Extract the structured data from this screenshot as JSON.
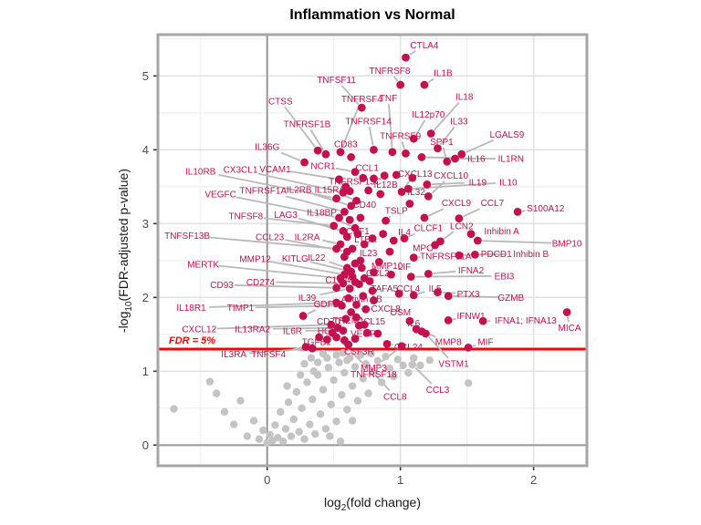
{
  "title": "Inflammation vs Normal",
  "x_label": {
    "pre": "log",
    "sub": "2",
    "post": "(fold change)"
  },
  "y_label": {
    "pre": "-log",
    "sub": "10",
    "post": "(FDR-adjusted p-value)"
  },
  "chart_data": {
    "type": "scatter",
    "title": "Inflammation vs Normal",
    "xlabel": "log2(fold change)",
    "ylabel": "-log10(FDR-adjusted p-value)",
    "xlim": [
      -0.82,
      2.4
    ],
    "ylim": [
      -0.28,
      5.56
    ],
    "x_ticks": [
      0,
      1,
      2
    ],
    "y_ticks": [
      0,
      1,
      2,
      3,
      4,
      5
    ],
    "grid": "major+minor",
    "threshold": {
      "y": 1.301,
      "label": "FDR = 5%",
      "color": "#fe0000"
    },
    "colors": {
      "significant": "#c5104f",
      "label_text": "#c5104f",
      "nonsignificant": "#c4c4c4",
      "leader": "#b9b9b9",
      "grid_major": "#e2e2e2",
      "grid_minor": "#f0f0f0",
      "zero_line": "#969696",
      "panel_border": "#a6a6a6",
      "tick_text": "#4d4d4d"
    },
    "labeled_points": [
      {
        "n": "CTLA4",
        "x": 1.04,
        "y": 5.25,
        "lx": 1.18,
        "ly": 5.42
      },
      {
        "n": "TNFRSF8",
        "x": 1.0,
        "y": 4.88,
        "lx": 0.92,
        "ly": 5.07
      },
      {
        "n": "IL1B",
        "x": 1.18,
        "y": 4.88,
        "lx": 1.32,
        "ly": 5.04
      },
      {
        "n": "TNFSF11",
        "x": 0.71,
        "y": 4.57,
        "lx": 0.52,
        "ly": 4.95
      },
      {
        "n": "TNF",
        "x": 0.94,
        "y": 3.97,
        "lx": 0.91,
        "ly": 4.7
      },
      {
        "n": "IL18",
        "x": 1.23,
        "y": 4.22,
        "lx": 1.48,
        "ly": 4.72
      },
      {
        "n": "IL12p70",
        "x": 1.1,
        "y": 4.15,
        "lx": 1.21,
        "ly": 4.48
      },
      {
        "n": "IL33",
        "x": 1.28,
        "y": 4.02,
        "lx": 1.44,
        "ly": 4.39
      },
      {
        "n": "LGALS9",
        "x": 1.46,
        "y": 3.94,
        "lx": 1.8,
        "ly": 4.21
      },
      {
        "n": "CTSS",
        "x": 0.38,
        "y": 3.99,
        "lx": 0.1,
        "ly": 4.66
      },
      {
        "n": "TNFRSF4",
        "x": 0.55,
        "y": 3.97,
        "lx": 0.71,
        "ly": 4.69
      },
      {
        "n": "TNFRSF1B",
        "x": 0.44,
        "y": 3.94,
        "lx": 0.3,
        "ly": 4.35
      },
      {
        "n": "TNFRSF14",
        "x": 0.8,
        "y": 4.0,
        "lx": 0.76,
        "ly": 4.39
      },
      {
        "n": "CD83",
        "x": 0.63,
        "y": 3.9,
        "lx": 0.59,
        "ly": 4.08
      },
      {
        "n": "TNFRSF9",
        "x": 1.04,
        "y": 3.95,
        "lx": 1.0,
        "ly": 4.19
      },
      {
        "n": "SPP1",
        "x": 1.35,
        "y": 3.84,
        "lx": 1.31,
        "ly": 4.11
      },
      {
        "n": "IL36G",
        "x": 0.28,
        "y": 3.83,
        "lx": 0.0,
        "ly": 4.04
      },
      {
        "n": "IL16",
        "x": 1.16,
        "y": 3.9,
        "lx": 1.57,
        "ly": 3.88
      },
      {
        "n": "IL1RN",
        "x": 1.41,
        "y": 3.88,
        "lx": 1.83,
        "ly": 3.88
      },
      {
        "n": "NCR1",
        "x": 0.66,
        "y": 3.7,
        "lx": 0.42,
        "ly": 3.78
      },
      {
        "n": "VCAM1",
        "x": 0.54,
        "y": 3.6,
        "lx": 0.06,
        "ly": 3.74
      },
      {
        "n": "CCL1",
        "x": 0.8,
        "y": 3.61,
        "lx": 0.75,
        "ly": 3.76
      },
      {
        "n": "TNFRSF13C",
        "x": 0.62,
        "y": 3.44,
        "lx": 0.66,
        "ly": 3.57
      },
      {
        "n": "IL12B",
        "x": 0.85,
        "y": 3.4,
        "lx": 0.89,
        "ly": 3.53
      },
      {
        "n": "CXCL13",
        "x": 1.01,
        "y": 3.43,
        "lx": 1.11,
        "ly": 3.68
      },
      {
        "n": "CXCL10",
        "x": 1.21,
        "y": 3.37,
        "lx": 1.38,
        "ly": 3.65
      },
      {
        "n": "IL19",
        "x": 1.2,
        "y": 3.53,
        "lx": 1.58,
        "ly": 3.56
      },
      {
        "n": "IL10",
        "x": 1.06,
        "y": 3.47,
        "lx": 1.81,
        "ly": 3.56
      },
      {
        "n": "IL32",
        "x": 1.07,
        "y": 3.27,
        "lx": 1.12,
        "ly": 3.43
      },
      {
        "n": "IL10RB",
        "x": 0.52,
        "y": 3.34,
        "lx": -0.5,
        "ly": 3.71
      },
      {
        "n": "CX3CL1",
        "x": 0.57,
        "y": 3.42,
        "lx": -0.2,
        "ly": 3.73
      },
      {
        "n": "VEGFC",
        "x": 0.54,
        "y": 3.08,
        "lx": -0.35,
        "ly": 3.4
      },
      {
        "n": "TNFRSF1A",
        "x": 0.58,
        "y": 3.16,
        "lx": -0.03,
        "ly": 3.45
      },
      {
        "n": "IL2RB",
        "x": 0.63,
        "y": 3.24,
        "lx": 0.24,
        "ly": 3.46
      },
      {
        "n": "IL15RA",
        "x": 0.67,
        "y": 3.31,
        "lx": 0.47,
        "ly": 3.46
      },
      {
        "n": "CD40",
        "x": 0.7,
        "y": 3.08,
        "lx": 0.73,
        "ly": 3.26
      },
      {
        "n": "TSLP",
        "x": 0.89,
        "y": 3.04,
        "lx": 0.97,
        "ly": 3.18
      },
      {
        "n": "CXCL9",
        "x": 1.18,
        "y": 3.08,
        "lx": 1.42,
        "ly": 3.28
      },
      {
        "n": "CCL7",
        "x": 1.44,
        "y": 3.07,
        "lx": 1.69,
        "ly": 3.28
      },
      {
        "n": "S100A12",
        "x": 1.88,
        "y": 3.16,
        "lx": 2.09,
        "ly": 3.21
      },
      {
        "n": "TNFSF8",
        "x": 0.5,
        "y": 2.97,
        "lx": -0.16,
        "ly": 3.1
      },
      {
        "n": "LAG3",
        "x": 0.57,
        "y": 2.9,
        "lx": 0.14,
        "ly": 3.12
      },
      {
        "n": "IL18BP",
        "x": 0.66,
        "y": 2.94,
        "lx": 0.41,
        "ly": 3.15
      },
      {
        "n": "CSF1",
        "x": 0.6,
        "y": 2.82,
        "lx": 0.68,
        "ly": 2.9
      },
      {
        "n": "LTBR",
        "x": 0.64,
        "y": 2.66,
        "lx": 0.74,
        "ly": 2.79
      },
      {
        "n": "IL4",
        "x": 0.95,
        "y": 2.77,
        "lx": 1.03,
        "ly": 2.89
      },
      {
        "n": "CLCF1",
        "x": 1.03,
        "y": 2.8,
        "lx": 1.21,
        "ly": 2.94
      },
      {
        "n": "LCN2",
        "x": 1.3,
        "y": 2.76,
        "lx": 1.46,
        "ly": 2.97
      },
      {
        "n": "Inhibin A",
        "x": 1.53,
        "y": 2.86,
        "lx": 1.76,
        "ly": 2.9
      },
      {
        "n": "MPO",
        "x": 1.26,
        "y": 2.71,
        "lx": 1.17,
        "ly": 2.67
      },
      {
        "n": "BMP10",
        "x": 1.58,
        "y": 2.77,
        "lx": 2.25,
        "ly": 2.73
      },
      {
        "n": "PDCD1",
        "x": 1.44,
        "y": 2.57,
        "lx": 1.72,
        "ly": 2.59
      },
      {
        "n": "Inhibin B",
        "x": 1.56,
        "y": 2.58,
        "lx": 1.98,
        "ly": 2.59
      },
      {
        "n": "TNFRSF11A",
        "x": 1.1,
        "y": 2.54,
        "lx": 1.34,
        "ly": 2.56
      },
      {
        "n": "TNFSF13B",
        "x": 0.52,
        "y": 2.66,
        "lx": -0.6,
        "ly": 2.84
      },
      {
        "n": "CCL23",
        "x": 0.6,
        "y": 2.62,
        "lx": 0.02,
        "ly": 2.82
      },
      {
        "n": "IL2RA",
        "x": 0.55,
        "y": 2.72,
        "lx": 0.3,
        "ly": 2.82
      },
      {
        "n": "IL23",
        "x": 0.7,
        "y": 2.5,
        "lx": 0.76,
        "ly": 2.6
      },
      {
        "n": "IL39",
        "x": 0.62,
        "y": 2.12,
        "lx": 0.3,
        "ly": 2.0
      },
      {
        "n": "IL22",
        "x": 0.6,
        "y": 2.4,
        "lx": 0.37,
        "ly": 2.54
      },
      {
        "n": "MERTK",
        "x": 0.55,
        "y": 2.26,
        "lx": -0.48,
        "ly": 2.45
      },
      {
        "n": "MMP12",
        "x": 0.58,
        "y": 2.31,
        "lx": -0.09,
        "ly": 2.52
      },
      {
        "n": "KITLG",
        "x": 0.63,
        "y": 2.35,
        "lx": 0.21,
        "ly": 2.53
      },
      {
        "n": "CD93",
        "x": 0.52,
        "y": 2.13,
        "lx": -0.34,
        "ly": 2.17
      },
      {
        "n": "CD274",
        "x": 0.57,
        "y": 2.19,
        "lx": -0.05,
        "ly": 2.21
      },
      {
        "n": "C1QA",
        "x": 0.66,
        "y": 2.21,
        "lx": 0.53,
        "ly": 2.24
      },
      {
        "n": "MMP10",
        "x": 0.8,
        "y": 2.34,
        "lx": 0.9,
        "ly": 2.43
      },
      {
        "n": "LIF",
        "x": 0.93,
        "y": 2.31,
        "lx": 1.03,
        "ly": 2.42
      },
      {
        "n": "CCL2",
        "x": 0.73,
        "y": 2.26,
        "lx": 0.83,
        "ly": 2.33
      },
      {
        "n": "TAFA5",
        "x": 0.79,
        "y": 2.09,
        "lx": 0.88,
        "ly": 2.12
      },
      {
        "n": "CCL4",
        "x": 0.99,
        "y": 2.05,
        "lx": 1.06,
        "ly": 2.12
      },
      {
        "n": "IFNA2",
        "x": 1.21,
        "y": 2.32,
        "lx": 1.53,
        "ly": 2.37
      },
      {
        "n": "EBI3",
        "x": 1.08,
        "y": 2.28,
        "lx": 1.78,
        "ly": 2.29
      },
      {
        "n": "IL5",
        "x": 1.1,
        "y": 2.03,
        "lx": 1.26,
        "ly": 2.12
      },
      {
        "n": "PTX3",
        "x": 1.28,
        "y": 2.07,
        "lx": 1.51,
        "ly": 2.05
      },
      {
        "n": "GZMB",
        "x": 1.36,
        "y": 2.02,
        "lx": 1.83,
        "ly": 2.0
      },
      {
        "n": "Activin AB",
        "x": 0.8,
        "y": 1.96,
        "lx": 0.71,
        "ly": 1.98
      },
      {
        "n": "CXCL8",
        "x": 0.74,
        "y": 1.84,
        "lx": 0.89,
        "ly": 1.85
      },
      {
        "n": "OSM",
        "x": 1.07,
        "y": 1.68,
        "lx": 1.0,
        "ly": 1.8
      },
      {
        "n": "GDF15",
        "x": 0.27,
        "y": 1.75,
        "lx": 0.46,
        "ly": 1.91
      },
      {
        "n": "IL18R1",
        "x": 0.52,
        "y": 1.93,
        "lx": -0.57,
        "ly": 1.86
      },
      {
        "n": "TIMP1",
        "x": 0.56,
        "y": 1.89,
        "lx": -0.2,
        "ly": 1.86
      },
      {
        "n": "CXCL12",
        "x": 0.48,
        "y": 1.63,
        "lx": -0.51,
        "ly": 1.57
      },
      {
        "n": "IL13RA2",
        "x": 0.53,
        "y": 1.59,
        "lx": -0.11,
        "ly": 1.57
      },
      {
        "n": "IL6R",
        "x": 0.57,
        "y": 1.55,
        "lx": 0.19,
        "ly": 1.55
      },
      {
        "n": "CD70",
        "x": 0.59,
        "y": 1.71,
        "lx": 0.46,
        "ly": 1.68
      },
      {
        "n": "TREM1",
        "x": 0.67,
        "y": 1.73,
        "lx": 0.61,
        "ly": 1.69
      },
      {
        "n": "CCL15",
        "x": 0.73,
        "y": 1.63,
        "lx": 0.78,
        "ly": 1.68
      },
      {
        "n": "HGF",
        "x": 0.39,
        "y": 1.46,
        "lx": 0.45,
        "ly": 1.55
      },
      {
        "n": "IFNW1",
        "x": 1.36,
        "y": 1.69,
        "lx": 1.53,
        "ly": 1.75
      },
      {
        "n": "IFNA1; IFNA13",
        "x": 1.62,
        "y": 1.68,
        "lx": 1.94,
        "ly": 1.69
      },
      {
        "n": "MICA",
        "x": 2.25,
        "y": 1.8,
        "lx": 2.27,
        "ly": 1.59
      },
      {
        "n": "IL6",
        "x": 1.12,
        "y": 1.57,
        "lx": 1.1,
        "ly": 1.65
      },
      {
        "n": "MMP8",
        "x": 1.16,
        "y": 1.54,
        "lx": 1.36,
        "ly": 1.4
      },
      {
        "n": "MIF",
        "x": 1.51,
        "y": 1.32,
        "lx": 1.64,
        "ly": 1.4
      },
      {
        "n": "VSTM1",
        "x": 1.19,
        "y": 1.51,
        "lx": 1.4,
        "ly": 1.1
      },
      {
        "n": "CCL24",
        "x": 0.9,
        "y": 1.37,
        "lx": 1.06,
        "ly": 1.33
      },
      {
        "n": "VEGFA",
        "x": 0.83,
        "y": 1.51,
        "lx": 0.74,
        "ly": 1.51
      },
      {
        "n": "TGFB1",
        "x": 0.45,
        "y": 1.43,
        "lx": 0.37,
        "ly": 1.4
      },
      {
        "n": "CSF3R",
        "x": 0.61,
        "y": 1.36,
        "lx": 0.69,
        "ly": 1.27
      },
      {
        "n": "TNFSF4",
        "x": 0.29,
        "y": 1.33,
        "lx": 0.01,
        "ly": 1.23
      },
      {
        "n": "IL3RA",
        "x": 0.34,
        "y": 1.31,
        "lx": -0.25,
        "ly": 1.23
      },
      {
        "n": "MMP3",
        "x": 1.01,
        "y": 1.34,
        "lx": 0.8,
        "ly": 1.05
      },
      {
        "n": "TNFRSF18",
        "x": 0.49,
        "y": 1.52,
        "lx": 0.8,
        "ly": 0.96
      },
      {
        "n": "CCL8",
        "x": 0.79,
        "y": 0.99,
        "lx": 0.96,
        "ly": 0.66,
        "g": 1
      },
      {
        "n": "CCL3",
        "x": 1.09,
        "y": 1.09,
        "lx": 1.28,
        "ly": 0.75,
        "g": 1
      }
    ],
    "extra_significant_points": [
      [
        0.59,
        3.5
      ],
      [
        0.72,
        3.62
      ],
      [
        0.88,
        3.65
      ],
      [
        0.97,
        3.66
      ],
      [
        1.09,
        3.62
      ],
      [
        0.76,
        3.45
      ],
      [
        0.62,
        3.05
      ],
      [
        0.68,
        2.86
      ],
      [
        0.73,
        2.72
      ],
      [
        0.66,
        2.46
      ],
      [
        0.71,
        2.4
      ],
      [
        0.64,
        2.28
      ],
      [
        0.69,
        2.18
      ],
      [
        0.61,
        1.99
      ],
      [
        0.67,
        1.9
      ],
      [
        0.72,
        2.02
      ],
      [
        0.77,
        2.22
      ],
      [
        0.84,
        2.48
      ],
      [
        0.58,
        2.55
      ],
      [
        0.63,
        1.8
      ],
      [
        0.69,
        1.62
      ],
      [
        0.75,
        1.52
      ],
      [
        0.66,
        1.44
      ],
      [
        0.58,
        1.42
      ],
      [
        0.52,
        1.46
      ],
      [
        0.87,
        2.86
      ],
      [
        0.92,
        2.62
      ],
      [
        0.79,
        2.8
      ]
    ],
    "nonsignificant_points": [
      [
        -0.7,
        0.49
      ],
      [
        -0.43,
        0.86
      ],
      [
        -0.38,
        0.7
      ],
      [
        -0.32,
        0.45
      ],
      [
        -0.25,
        0.28
      ],
      [
        -0.2,
        0.6
      ],
      [
        -0.15,
        0.12
      ],
      [
        -0.1,
        0.33
      ],
      [
        -0.06,
        0.08
      ],
      [
        -0.03,
        0.2
      ],
      [
        0.0,
        0.03
      ],
      [
        0.02,
        0.14
      ],
      [
        0.04,
        0.06
      ],
      [
        0.06,
        0.27
      ],
      [
        0.08,
        0.1
      ],
      [
        0.1,
        0.45
      ],
      [
        0.12,
        0.05
      ],
      [
        0.14,
        0.22
      ],
      [
        0.16,
        0.58
      ],
      [
        0.18,
        0.12
      ],
      [
        0.2,
        0.35
      ],
      [
        0.22,
        0.72
      ],
      [
        0.24,
        0.18
      ],
      [
        0.26,
        0.5
      ],
      [
        0.28,
        0.08
      ],
      [
        0.3,
        0.85
      ],
      [
        0.32,
        0.28
      ],
      [
        0.34,
        0.62
      ],
      [
        0.36,
        0.15
      ],
      [
        0.38,
        0.95
      ],
      [
        0.4,
        0.42
      ],
      [
        0.42,
        0.75
      ],
      [
        0.44,
        0.22
      ],
      [
        0.46,
        1.05
      ],
      [
        0.48,
        0.55
      ],
      [
        0.5,
        0.88
      ],
      [
        0.52,
        0.32
      ],
      [
        0.54,
        1.12
      ],
      [
        0.56,
        0.68
      ],
      [
        0.58,
        0.98
      ],
      [
        0.6,
        0.48
      ],
      [
        0.62,
        1.18
      ],
      [
        0.64,
        0.8
      ],
      [
        0.66,
        1.06
      ],
      [
        0.68,
        0.6
      ],
      [
        0.7,
        1.22
      ],
      [
        0.72,
        0.9
      ],
      [
        0.74,
        1.1
      ],
      [
        0.76,
        0.7
      ],
      [
        0.78,
        1.24
      ],
      [
        0.8,
        0.98
      ],
      [
        0.83,
        1.14
      ],
      [
        0.86,
        0.85
      ],
      [
        0.89,
        1.2
      ],
      [
        0.92,
        1.04
      ],
      [
        0.95,
        0.93
      ],
      [
        0.98,
        1.16
      ],
      [
        1.02,
        1.08
      ],
      [
        1.06,
        0.98
      ],
      [
        1.1,
        1.18
      ],
      [
        1.15,
        1.08
      ],
      [
        1.22,
        1.15
      ],
      [
        0.35,
        1.0
      ],
      [
        0.28,
        1.1
      ],
      [
        0.45,
        1.18
      ],
      [
        0.15,
        0.8
      ],
      [
        1.51,
        0.84
      ],
      [
        0.55,
        0.05
      ],
      [
        0.47,
        0.12
      ],
      [
        0.64,
        0.33
      ],
      [
        0.25,
        0.95
      ],
      [
        0.52,
        1.22
      ],
      [
        0.38,
        1.12
      ],
      [
        0.6,
        1.15
      ],
      [
        0.42,
        1.24
      ],
      [
        0.57,
        1.25
      ],
      [
        0.33,
        1.18
      ]
    ]
  }
}
